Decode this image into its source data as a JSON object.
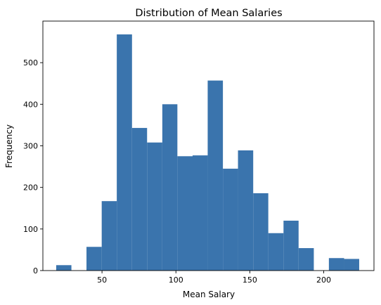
{
  "chart_data": {
    "type": "bar",
    "title": "Distribution of Mean Salaries",
    "xlabel": "Mean Salary",
    "ylabel": "Frequency",
    "xlim": [
      10,
      234
    ],
    "ylim": [
      0,
      600
    ],
    "xticks": [
      50,
      100,
      150,
      200
    ],
    "yticks": [
      0,
      100,
      200,
      300,
      400,
      500
    ],
    "grid": false,
    "bar_color": "#3a74ad",
    "bins": [
      {
        "start": 19.0,
        "end": 29.3,
        "count": 13
      },
      {
        "start": 39.5,
        "end": 49.8,
        "count": 57
      },
      {
        "start": 49.8,
        "end": 60.0,
        "count": 167
      },
      {
        "start": 60.0,
        "end": 70.3,
        "count": 568
      },
      {
        "start": 70.3,
        "end": 80.5,
        "count": 343
      },
      {
        "start": 80.5,
        "end": 90.8,
        "count": 308
      },
      {
        "start": 90.8,
        "end": 101.0,
        "count": 400
      },
      {
        "start": 101.0,
        "end": 111.3,
        "count": 275
      },
      {
        "start": 111.3,
        "end": 121.5,
        "count": 277
      },
      {
        "start": 121.5,
        "end": 131.8,
        "count": 457
      },
      {
        "start": 131.8,
        "end": 142.0,
        "count": 245
      },
      {
        "start": 142.0,
        "end": 152.3,
        "count": 289
      },
      {
        "start": 152.3,
        "end": 162.5,
        "count": 186
      },
      {
        "start": 162.5,
        "end": 172.8,
        "count": 90
      },
      {
        "start": 172.8,
        "end": 183.0,
        "count": 120
      },
      {
        "start": 183.0,
        "end": 193.3,
        "count": 54
      },
      {
        "start": 203.5,
        "end": 213.8,
        "count": 30
      },
      {
        "start": 213.8,
        "end": 224.0,
        "count": 28
      }
    ]
  }
}
